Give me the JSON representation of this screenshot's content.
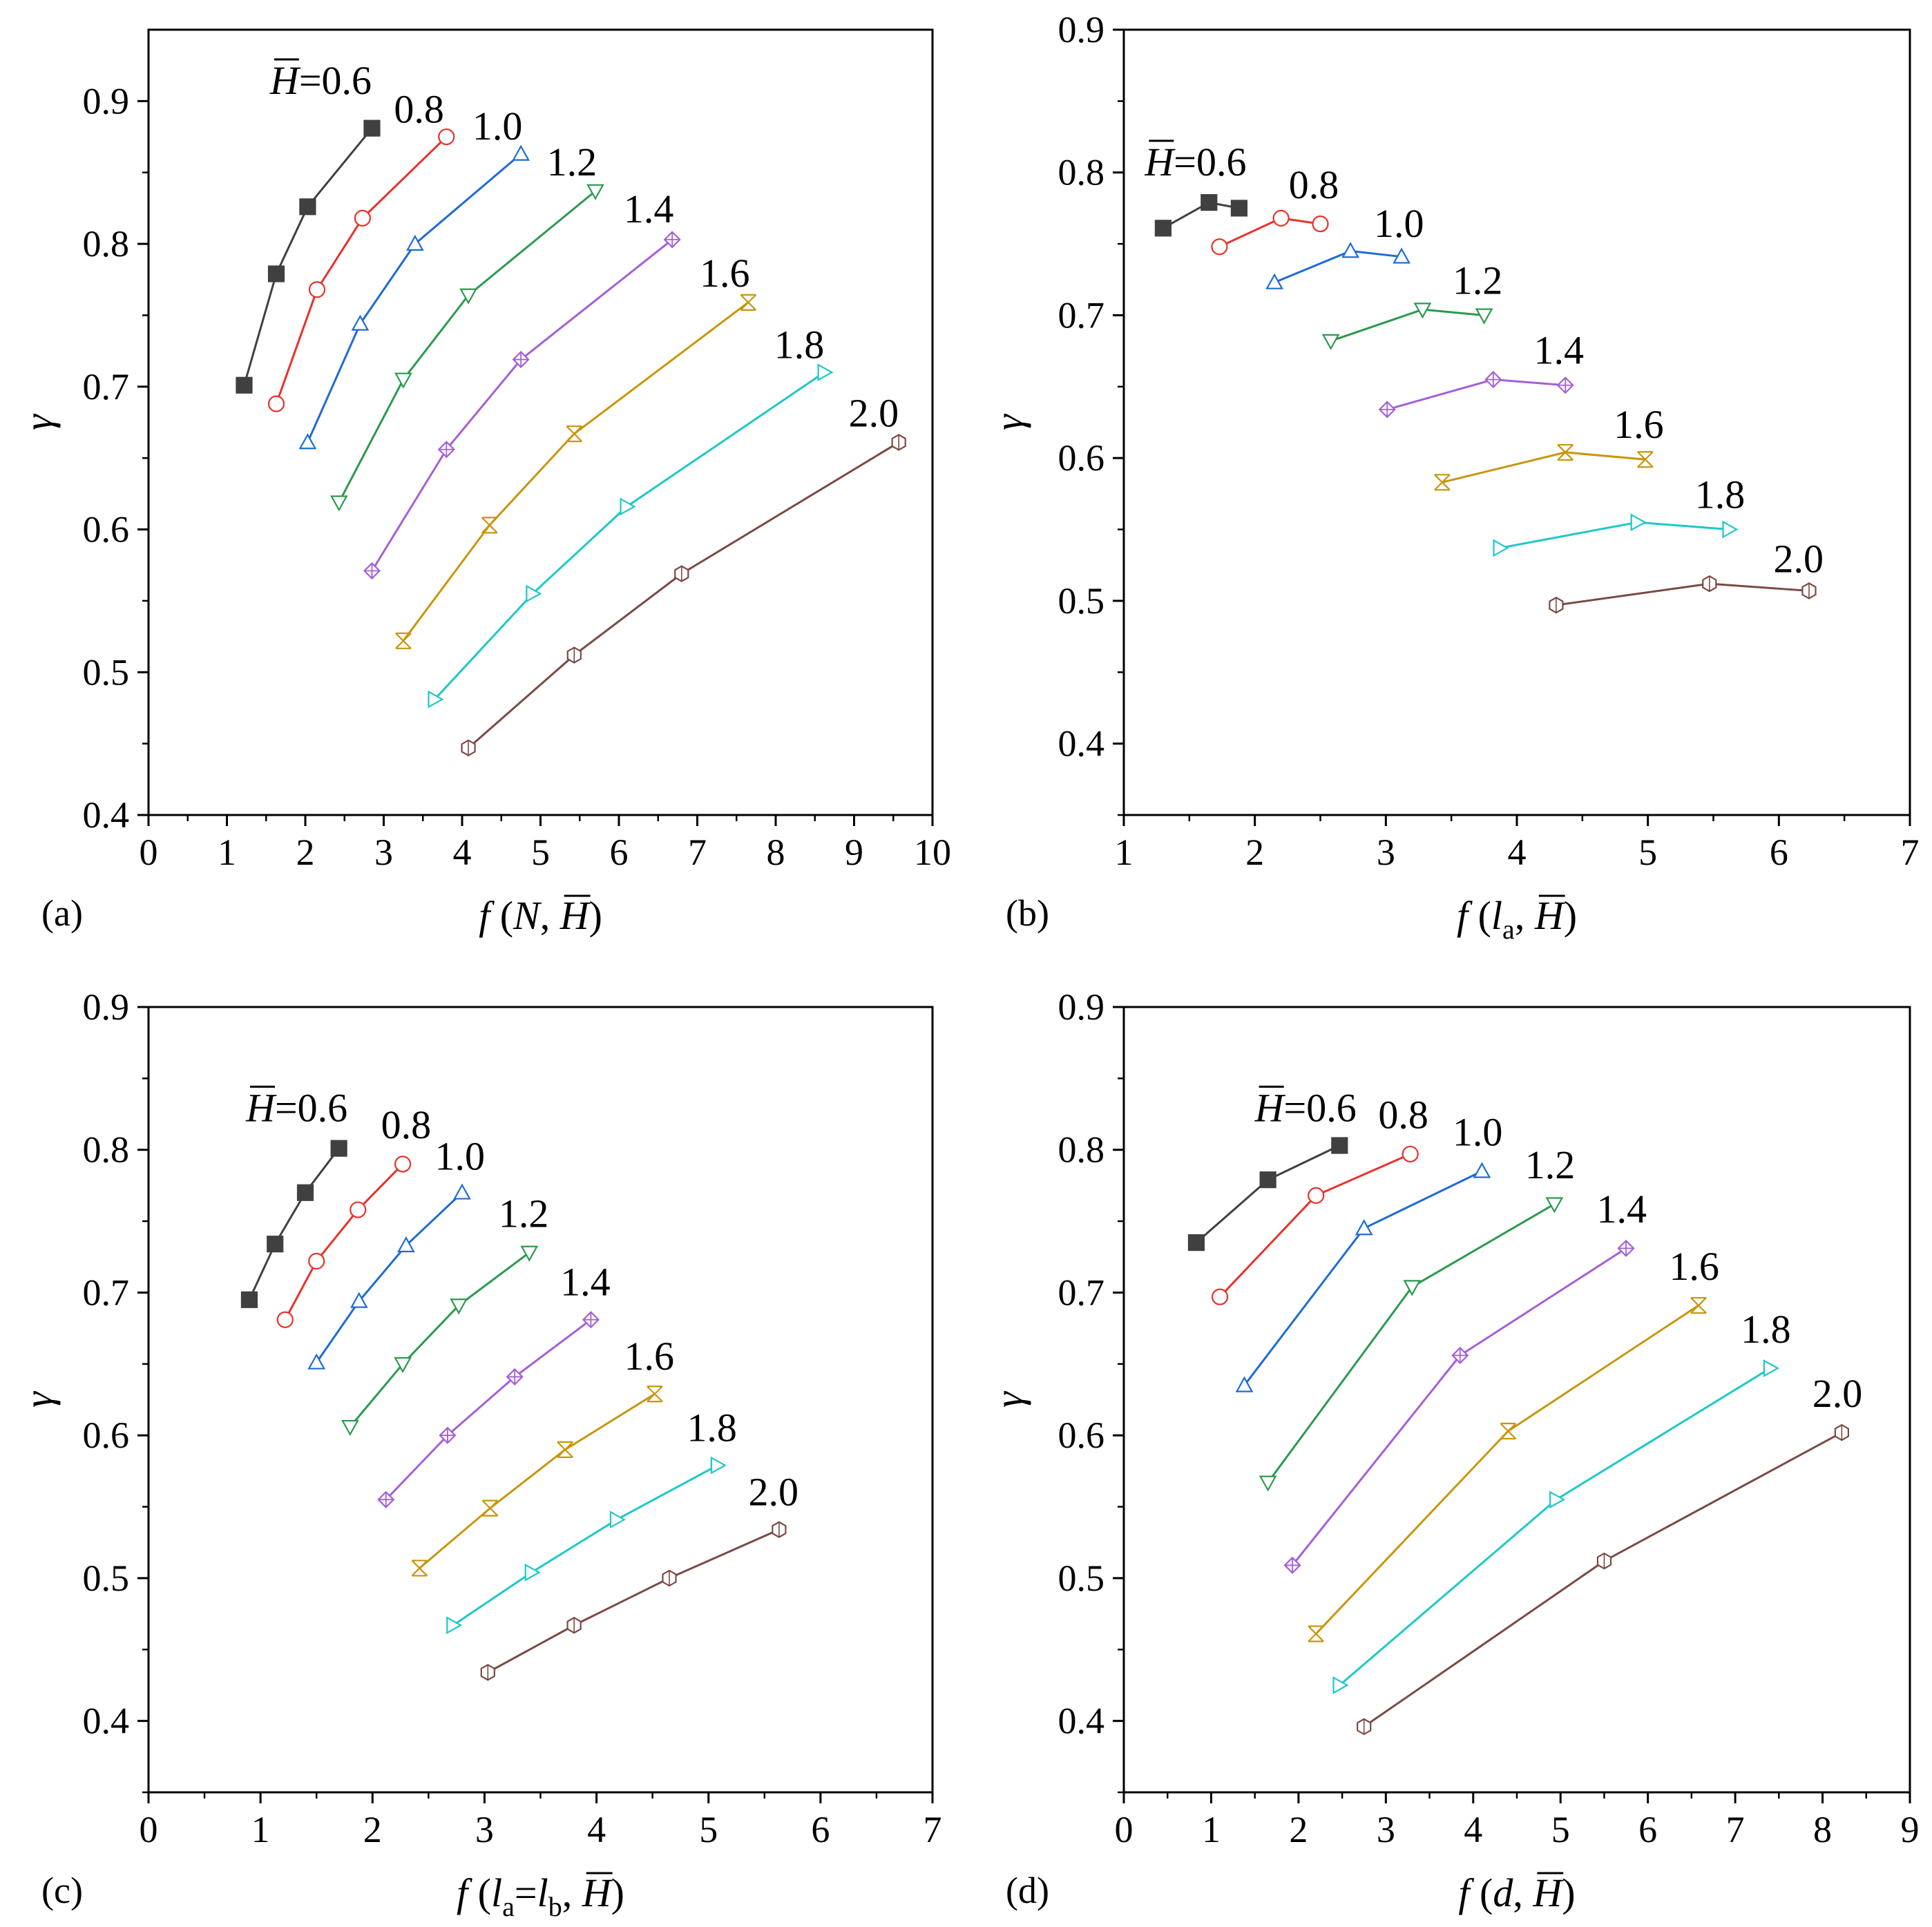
{
  "figure": {
    "y_axis_symbol": "γ",
    "series_colors": {
      "0.6": "#404040",
      "0.8": "#e8312b",
      "1.0": "#1e6bd6",
      "1.2": "#2a9a4e",
      "1.4": "#a45fd8",
      "1.6": "#c8960a",
      "1.8": "#1ec8c8",
      "2.0": "#7a4a44"
    },
    "series_markers": {
      "0.6": "square-filled",
      "0.8": "circle",
      "1.0": "triangle-up",
      "1.2": "triangle-down",
      "1.4": "diamond-cross",
      "1.6": "hourglass-x",
      "1.8": "triangle-right",
      "2.0": "hexagon"
    }
  },
  "chart_data": [
    {
      "id": "a",
      "panel_label": "(a)",
      "type": "line",
      "ylabel": "γ",
      "xlabel": {
        "prefix": "f",
        "open": " (",
        "var": "N",
        "sub": "",
        "mid": "",
        "var2": "",
        "sub2": "",
        "sep": ", ",
        "hbar": "H",
        "close": ")"
      },
      "xlim": [
        0,
        10
      ],
      "ylim": [
        0.4,
        0.95
      ],
      "xticks": [
        0,
        1,
        2,
        3,
        4,
        5,
        6,
        7,
        8,
        9,
        10
      ],
      "xminor": [
        0.5,
        1.5,
        2.5,
        3.5,
        4.5,
        5.5,
        6.5,
        7.5,
        8.5,
        9.5
      ],
      "yticks": [
        0.4,
        0.5,
        0.6,
        0.7,
        0.8,
        0.9
      ],
      "yminor": [
        0.45,
        0.55,
        0.65,
        0.75,
        0.85
      ],
      "hbar_label": {
        "first_prefix": "H",
        "first_suffix": "=0.6"
      },
      "series": [
        {
          "name": "0.6",
          "x": [
            1.22,
            1.63,
            2.03,
            2.85
          ],
          "y": [
            0.701,
            0.779,
            0.826,
            0.881
          ],
          "label": {
            "text": "=0.6",
            "x": 1.55,
            "y": 0.905,
            "withH": true
          }
        },
        {
          "name": "0.8",
          "x": [
            1.63,
            2.15,
            2.73,
            3.8
          ],
          "y": [
            0.688,
            0.768,
            0.818,
            0.875
          ],
          "label": {
            "text": "0.8",
            "x": 3.45,
            "y": 0.885,
            "withH": false
          }
        },
        {
          "name": "1.0",
          "x": [
            2.03,
            2.7,
            3.4,
            4.75
          ],
          "y": [
            0.661,
            0.744,
            0.8,
            0.863
          ],
          "label": {
            "text": "1.0",
            "x": 4.45,
            "y": 0.873,
            "withH": false
          }
        },
        {
          "name": "1.2",
          "x": [
            2.43,
            3.25,
            4.08,
            5.7
          ],
          "y": [
            0.619,
            0.705,
            0.764,
            0.837
          ],
          "label": {
            "text": "1.2",
            "x": 5.4,
            "y": 0.848,
            "withH": false
          }
        },
        {
          "name": "1.4",
          "x": [
            2.85,
            3.8,
            4.75,
            6.68
          ],
          "y": [
            0.571,
            0.656,
            0.719,
            0.803
          ],
          "label": {
            "text": "1.4",
            "x": 6.38,
            "y": 0.815,
            "withH": false
          }
        },
        {
          "name": "1.6",
          "x": [
            3.25,
            4.35,
            5.43,
            7.65
          ],
          "y": [
            0.522,
            0.603,
            0.667,
            0.759
          ],
          "label": {
            "text": "1.6",
            "x": 7.35,
            "y": 0.77,
            "withH": false
          }
        },
        {
          "name": "1.8",
          "x": [
            3.65,
            4.9,
            6.1,
            8.62
          ],
          "y": [
            0.481,
            0.555,
            0.616,
            0.71
          ],
          "label": {
            "text": "1.8",
            "x": 8.3,
            "y": 0.72,
            "withH": false
          }
        },
        {
          "name": "2.0",
          "x": [
            4.08,
            5.43,
            6.8,
            9.57
          ],
          "y": [
            0.447,
            0.512,
            0.569,
            0.661
          ],
          "label": {
            "text": "2.0",
            "x": 9.25,
            "y": 0.672,
            "withH": false
          }
        }
      ]
    },
    {
      "id": "b",
      "panel_label": "(b)",
      "type": "line",
      "ylabel": "γ",
      "xlabel": {
        "prefix": "f",
        "open": " (",
        "var": "l",
        "sub": "a",
        "mid": "",
        "var2": "",
        "sub2": "",
        "sep": ", ",
        "hbar": "H",
        "close": ")"
      },
      "xlim": [
        1,
        7
      ],
      "ylim": [
        0.35,
        0.9
      ],
      "xticks": [
        1,
        2,
        3,
        4,
        5,
        6,
        7
      ],
      "xminor": [
        1.5,
        2.5,
        3.5,
        4.5,
        5.5,
        6.5
      ],
      "yticks": [
        0.4,
        0.5,
        0.6,
        0.7,
        0.8,
        0.9
      ],
      "yminor": [
        0.35,
        0.45,
        0.55,
        0.65,
        0.75,
        0.85
      ],
      "series": [
        {
          "name": "0.6",
          "x": [
            1.3,
            1.65,
            1.88
          ],
          "y": [
            0.761,
            0.779,
            0.775
          ],
          "label": {
            "text": "=0.6",
            "x": 1.16,
            "y": 0.798,
            "withH": true
          }
        },
        {
          "name": "0.8",
          "x": [
            1.73,
            2.2,
            2.5
          ],
          "y": [
            0.748,
            0.768,
            0.764
          ],
          "label": {
            "text": "0.8",
            "x": 2.45,
            "y": 0.782,
            "withH": false
          }
        },
        {
          "name": "1.0",
          "x": [
            2.15,
            2.73,
            3.12
          ],
          "y": [
            0.723,
            0.745,
            0.741
          ],
          "label": {
            "text": "1.0",
            "x": 3.1,
            "y": 0.755,
            "withH": false
          }
        },
        {
          "name": "1.2",
          "x": [
            2.58,
            3.28,
            3.75
          ],
          "y": [
            0.682,
            0.704,
            0.7
          ],
          "label": {
            "text": "1.2",
            "x": 3.7,
            "y": 0.715,
            "withH": false
          }
        },
        {
          "name": "1.4",
          "x": [
            3.01,
            3.82,
            4.37
          ],
          "y": [
            0.634,
            0.655,
            0.651
          ],
          "label": {
            "text": "1.4",
            "x": 4.32,
            "y": 0.666,
            "withH": false
          }
        },
        {
          "name": "1.6",
          "x": [
            3.43,
            4.37,
            4.98
          ],
          "y": [
            0.583,
            0.604,
            0.599
          ],
          "label": {
            "text": "1.6",
            "x": 4.93,
            "y": 0.614,
            "withH": false
          }
        },
        {
          "name": "1.8",
          "x": [
            3.87,
            4.92,
            5.62
          ],
          "y": [
            0.537,
            0.555,
            0.55
          ],
          "label": {
            "text": "1.8",
            "x": 5.55,
            "y": 0.565,
            "withH": false
          }
        },
        {
          "name": "2.0",
          "x": [
            4.3,
            5.47,
            6.23
          ],
          "y": [
            0.497,
            0.512,
            0.507
          ],
          "label": {
            "text": "2.0",
            "x": 6.15,
            "y": 0.52,
            "withH": false
          }
        }
      ]
    },
    {
      "id": "c",
      "panel_label": "(c)",
      "type": "line",
      "ylabel": "γ",
      "xlabel": {
        "prefix": "f",
        "open": " (",
        "var": "l",
        "sub": "a",
        "mid": "=",
        "var2": "l",
        "sub2": "b",
        "sep": ", ",
        "hbar": "H",
        "close": ")"
      },
      "xlim": [
        0,
        7
      ],
      "ylim": [
        0.35,
        0.9
      ],
      "xticks": [
        0,
        1,
        2,
        3,
        4,
        5,
        6,
        7
      ],
      "xminor": [
        0.5,
        1.5,
        2.5,
        3.5,
        4.5,
        5.5,
        6.5
      ],
      "yticks": [
        0.4,
        0.5,
        0.6,
        0.7,
        0.8,
        0.9
      ],
      "yminor": [
        0.35,
        0.45,
        0.55,
        0.65,
        0.75,
        0.85
      ],
      "series": [
        {
          "name": "0.6",
          "x": [
            0.9,
            1.13,
            1.4,
            1.7
          ],
          "y": [
            0.695,
            0.734,
            0.77,
            0.801
          ],
          "label": {
            "text": "=0.6",
            "x": 0.87,
            "y": 0.82,
            "withH": true
          }
        },
        {
          "name": "0.8",
          "x": [
            1.22,
            1.5,
            1.87,
            2.27
          ],
          "y": [
            0.681,
            0.722,
            0.758,
            0.79
          ],
          "label": {
            "text": "0.8",
            "x": 2.3,
            "y": 0.808,
            "withH": false
          }
        },
        {
          "name": "1.0",
          "x": [
            1.5,
            1.88,
            2.3,
            2.8
          ],
          "y": [
            0.651,
            0.694,
            0.733,
            0.77
          ],
          "label": {
            "text": "1.0",
            "x": 2.78,
            "y": 0.786,
            "withH": false
          }
        },
        {
          "name": "1.2",
          "x": [
            1.8,
            2.27,
            2.77,
            3.4
          ],
          "y": [
            0.606,
            0.65,
            0.691,
            0.728
          ],
          "label": {
            "text": "1.2",
            "x": 3.35,
            "y": 0.746,
            "withH": false
          }
        },
        {
          "name": "1.4",
          "x": [
            2.12,
            2.67,
            3.27,
            3.95
          ],
          "y": [
            0.555,
            0.6,
            0.641,
            0.681
          ],
          "label": {
            "text": "1.4",
            "x": 3.9,
            "y": 0.698,
            "withH": false
          }
        },
        {
          "name": "1.6",
          "x": [
            2.42,
            3.05,
            3.72,
            4.52
          ],
          "y": [
            0.507,
            0.549,
            0.59,
            0.629
          ],
          "label": {
            "text": "1.6",
            "x": 4.47,
            "y": 0.646,
            "withH": false
          }
        },
        {
          "name": "1.8",
          "x": [
            2.72,
            3.42,
            4.18,
            5.08
          ],
          "y": [
            0.467,
            0.504,
            0.541,
            0.579
          ],
          "label": {
            "text": "1.8",
            "x": 5.03,
            "y": 0.596,
            "withH": false
          }
        },
        {
          "name": "2.0",
          "x": [
            3.03,
            3.8,
            4.65,
            5.63
          ],
          "y": [
            0.434,
            0.467,
            0.5,
            0.534
          ],
          "label": {
            "text": "2.0",
            "x": 5.58,
            "y": 0.551,
            "withH": false
          }
        }
      ]
    },
    {
      "id": "d",
      "panel_label": "(d)",
      "type": "line",
      "ylabel": "γ",
      "xlabel": {
        "prefix": "f",
        "open": " (",
        "var": "d",
        "sub": "",
        "mid": "",
        "var2": "",
        "sub2": "",
        "sep": ", ",
        "hbar": "H",
        "close": ")"
      },
      "xlim": [
        0,
        9
      ],
      "ylim": [
        0.35,
        0.9
      ],
      "xticks": [
        0,
        1,
        2,
        3,
        4,
        5,
        6,
        7,
        8,
        9
      ],
      "xminor": [
        0.5,
        1.5,
        2.5,
        3.5,
        4.5,
        5.5,
        6.5,
        7.5,
        8.5
      ],
      "yticks": [
        0.4,
        0.5,
        0.6,
        0.7,
        0.8,
        0.9
      ],
      "yminor": [
        0.35,
        0.45,
        0.55,
        0.65,
        0.75,
        0.85
      ],
      "series": [
        {
          "name": "0.6",
          "x": [
            0.83,
            1.65,
            2.47
          ],
          "y": [
            0.735,
            0.779,
            0.803
          ],
          "label": {
            "text": "=0.6",
            "x": 1.5,
            "y": 0.82,
            "withH": true
          }
        },
        {
          "name": "0.8",
          "x": [
            1.1,
            2.2,
            3.28
          ],
          "y": [
            0.697,
            0.768,
            0.797
          ],
          "label": {
            "text": "0.8",
            "x": 3.2,
            "y": 0.815,
            "withH": false
          }
        },
        {
          "name": "1.0",
          "x": [
            1.38,
            2.75,
            4.1
          ],
          "y": [
            0.635,
            0.745,
            0.785
          ],
          "label": {
            "text": "1.0",
            "x": 4.05,
            "y": 0.803,
            "withH": false
          }
        },
        {
          "name": "1.2",
          "x": [
            1.65,
            3.3,
            4.93
          ],
          "y": [
            0.567,
            0.704,
            0.762
          ],
          "label": {
            "text": "1.2",
            "x": 4.88,
            "y": 0.78,
            "withH": false
          }
        },
        {
          "name": "1.4",
          "x": [
            1.93,
            3.85,
            5.75
          ],
          "y": [
            0.509,
            0.656,
            0.731
          ],
          "label": {
            "text": "1.4",
            "x": 5.7,
            "y": 0.749,
            "withH": false
          }
        },
        {
          "name": "1.6",
          "x": [
            2.2,
            4.4,
            6.58
          ],
          "y": [
            0.461,
            0.603,
            0.691
          ],
          "label": {
            "text": "1.6",
            "x": 6.53,
            "y": 0.709,
            "withH": false
          }
        },
        {
          "name": "1.8",
          "x": [
            2.47,
            4.95,
            7.4
          ],
          "y": [
            0.425,
            0.555,
            0.647
          ],
          "label": {
            "text": "1.8",
            "x": 7.35,
            "y": 0.665,
            "withH": false
          }
        },
        {
          "name": "2.0",
          "x": [
            2.75,
            5.5,
            8.22
          ],
          "y": [
            0.396,
            0.512,
            0.602
          ],
          "label": {
            "text": "2.0",
            "x": 8.17,
            "y": 0.62,
            "withH": false
          }
        }
      ]
    }
  ]
}
